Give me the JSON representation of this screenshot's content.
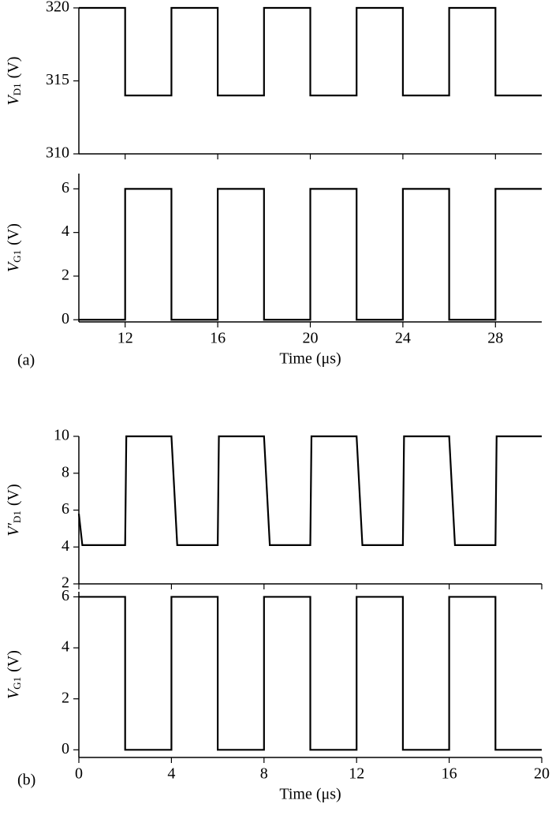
{
  "chart_data": [
    {
      "type": "line",
      "panel_label": "(a)",
      "y_label_symbol": "V",
      "y_label_subscript": "D1",
      "y_label_unit": "(V)",
      "xlim": [
        10,
        30
      ],
      "xticks": [
        12,
        16,
        20,
        24,
        28
      ],
      "show_xtick_labels": false,
      "ylim": [
        310,
        320
      ],
      "yticks": [
        310,
        315,
        320
      ],
      "series": [
        {
          "color": "#000000",
          "x": [
            10,
            12,
            12,
            14,
            14,
            16,
            16,
            18,
            18,
            20,
            20,
            22,
            22,
            24,
            24,
            26,
            26,
            28,
            28,
            30
          ],
          "values": [
            320,
            320,
            314,
            314,
            320,
            320,
            314,
            314,
            320,
            320,
            314,
            314,
            320,
            320,
            314,
            314,
            320,
            320,
            314,
            314
          ]
        }
      ]
    },
    {
      "type": "line",
      "y_label_symbol": "V",
      "y_label_subscript": "G1",
      "y_label_unit": "(V)",
      "x_label": "Time (μs)",
      "xlim": [
        10,
        30
      ],
      "xticks": [
        12,
        16,
        20,
        24,
        28
      ],
      "show_xtick_labels": true,
      "ylim": [
        -0.1,
        6.7
      ],
      "yticks": [
        0,
        2,
        4,
        6
      ],
      "series": [
        {
          "color": "#000000",
          "x": [
            10,
            12,
            12,
            14,
            14,
            16,
            16,
            18,
            18,
            20,
            20,
            22,
            22,
            24,
            24,
            26,
            26,
            28,
            28,
            30
          ],
          "values": [
            0,
            0,
            6,
            6,
            0,
            0,
            6,
            6,
            0,
            0,
            6,
            6,
            0,
            0,
            6,
            6,
            0,
            0,
            6,
            6
          ]
        }
      ]
    },
    {
      "type": "line",
      "panel_label": "(b)",
      "y_label_symbol": "V′",
      "y_label_subscript": "D1",
      "y_label_unit": "(V)",
      "xlim": [
        0,
        20
      ],
      "xticks": [
        0,
        4,
        8,
        12,
        16,
        20
      ],
      "show_xtick_labels": false,
      "ylim": [
        2,
        10
      ],
      "yticks": [
        2,
        4,
        6,
        8,
        10
      ],
      "series": [
        {
          "color": "#000000",
          "x": [
            0,
            0.15,
            2,
            2.05,
            4,
            4.25,
            6,
            6.05,
            8,
            8.25,
            10,
            10.05,
            12,
            12.25,
            14,
            14.05,
            16,
            16.25,
            18,
            18.05,
            20
          ],
          "values": [
            5.8,
            4.1,
            4.1,
            10,
            10,
            4.1,
            4.1,
            10,
            10,
            4.1,
            4.1,
            10,
            10,
            4.1,
            4.1,
            10,
            10,
            4.1,
            4.1,
            10,
            10
          ]
        }
      ]
    },
    {
      "type": "line",
      "y_label_symbol": "V",
      "y_label_subscript": "G1",
      "y_label_unit": "(V)",
      "x_label": "Time (μs)",
      "xlim": [
        0,
        20
      ],
      "xticks": [
        0,
        4,
        8,
        12,
        16,
        20
      ],
      "show_xtick_labels": true,
      "ylim": [
        -0.3,
        6.2
      ],
      "yticks": [
        0,
        2,
        4,
        6
      ],
      "series": [
        {
          "color": "#000000",
          "x": [
            0,
            2,
            2,
            4,
            4,
            6,
            6,
            8,
            8,
            10,
            10,
            12,
            12,
            14,
            14,
            16,
            16,
            18,
            18,
            20
          ],
          "values": [
            6,
            6,
            0,
            0,
            6,
            6,
            0,
            0,
            6,
            6,
            0,
            0,
            6,
            6,
            0,
            0,
            6,
            6,
            0,
            0
          ]
        }
      ]
    }
  ]
}
